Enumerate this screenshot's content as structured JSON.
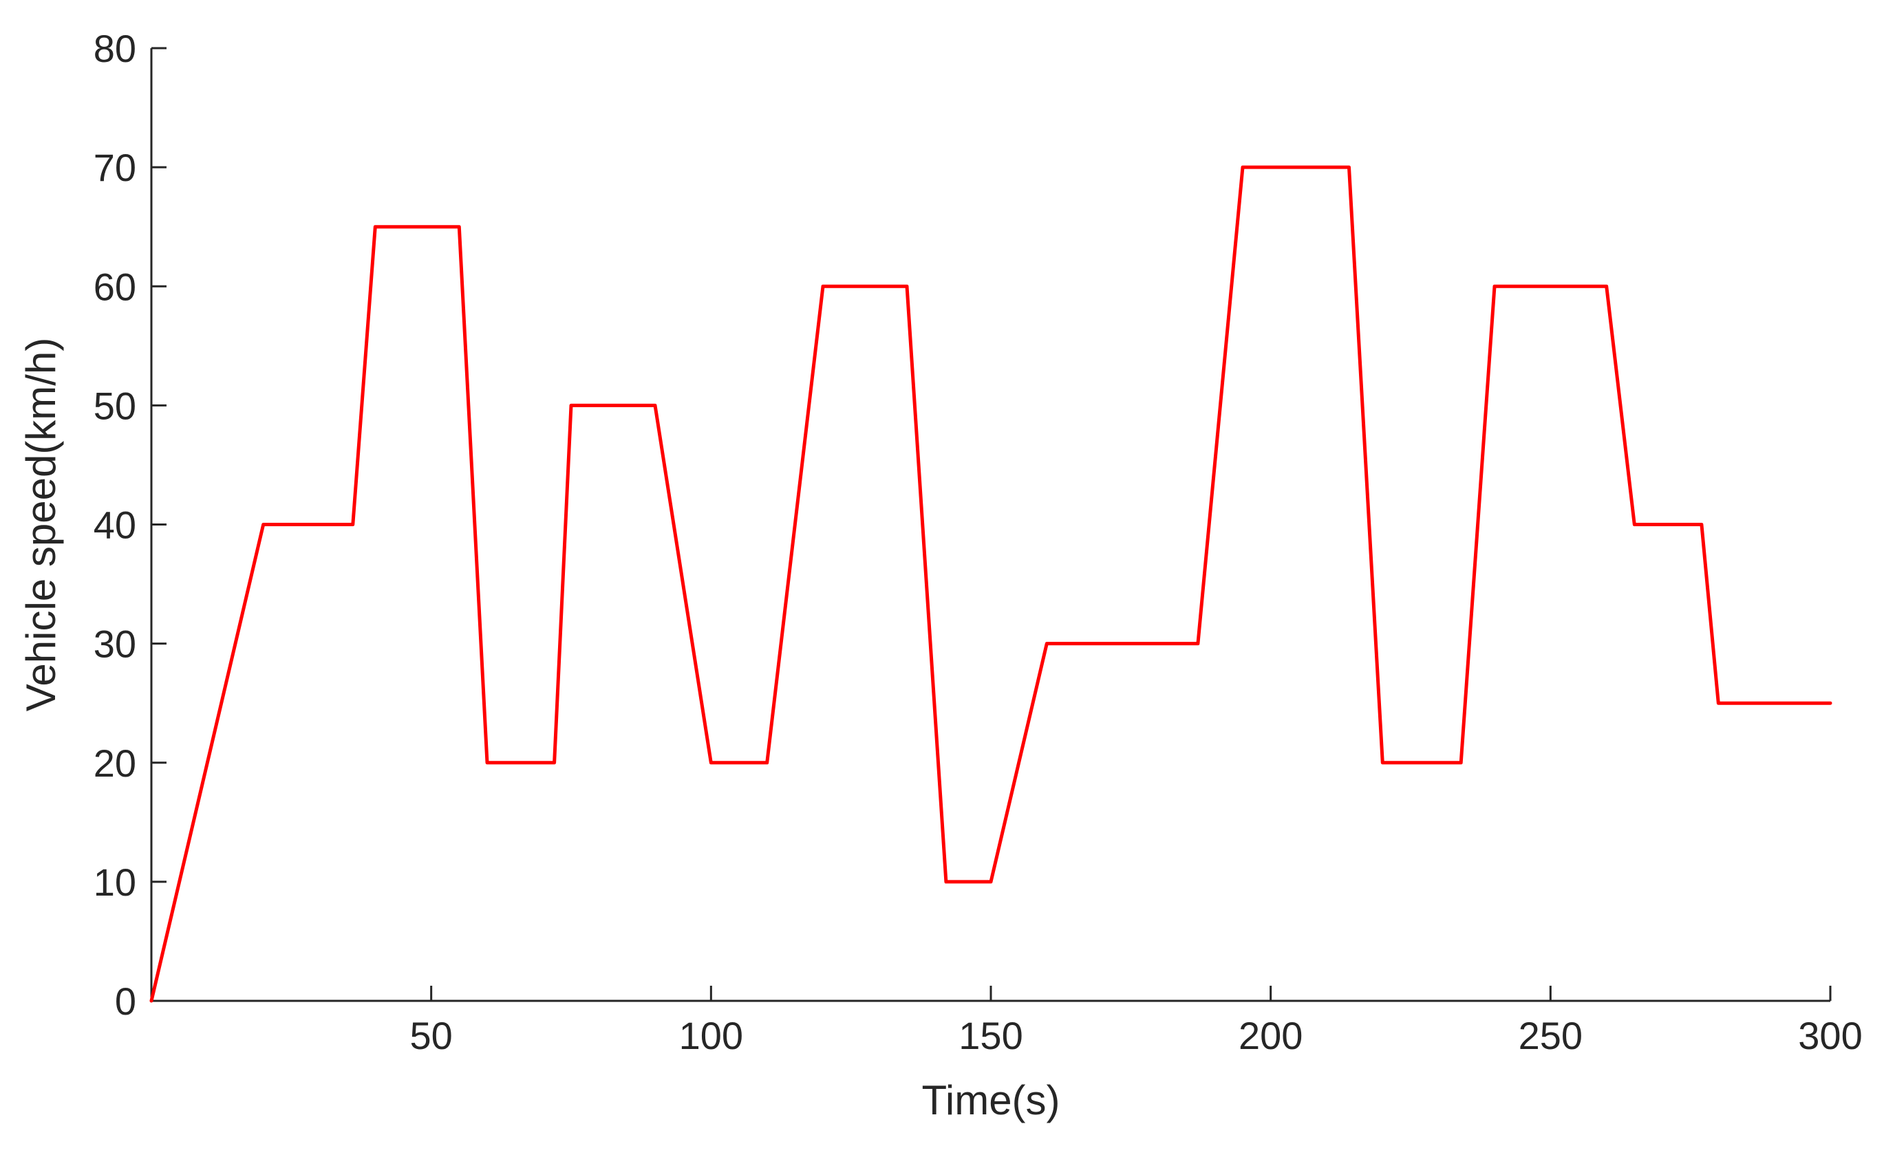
{
  "chart_data": {
    "type": "line",
    "title": "",
    "xlabel": "Time(s)",
    "ylabel": "Vehicle speed(km/h)",
    "xlim": [
      0,
      300
    ],
    "ylim": [
      0,
      80
    ],
    "grid": false,
    "x_ticks": [
      50,
      100,
      150,
      200,
      250,
      300
    ],
    "y_ticks": [
      0,
      10,
      20,
      30,
      40,
      50,
      60,
      70,
      80
    ],
    "x_tick_labels": [
      "50",
      "100",
      "150",
      "200",
      "250",
      "300"
    ],
    "y_tick_labels": [
      "0",
      "10",
      "20",
      "30",
      "40",
      "50",
      "60",
      "70",
      "80"
    ],
    "series": [
      {
        "color": "#ff0000",
        "x": [
          0,
          20,
          36,
          40,
          55,
          60,
          72,
          75,
          90,
          100,
          110,
          120,
          135,
          142,
          150,
          160,
          187,
          195,
          214,
          220,
          234,
          240,
          260,
          265,
          277,
          280,
          300
        ],
        "y": [
          0,
          40,
          40,
          65,
          65,
          20,
          20,
          50,
          50,
          20,
          20,
          60,
          60,
          10,
          10,
          30,
          30,
          70,
          70,
          20,
          20,
          60,
          60,
          40,
          40,
          25,
          25
        ]
      }
    ]
  }
}
